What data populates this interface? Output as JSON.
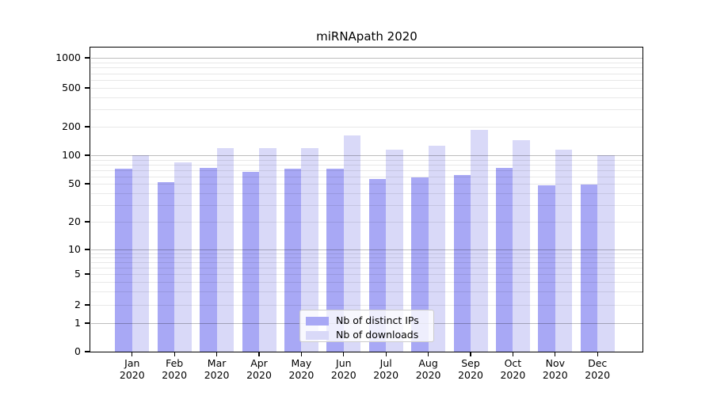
{
  "chart_data": {
    "type": "bar",
    "title": "miRNApath 2020",
    "months": [
      "Jan",
      "Feb",
      "Mar",
      "Apr",
      "May",
      "Jun",
      "Jul",
      "Aug",
      "Sep",
      "Oct",
      "Nov",
      "Dec"
    ],
    "year": "2020",
    "categories": [
      "Jan 2020",
      "Feb 2020",
      "Mar 2020",
      "Apr 2020",
      "May 2020",
      "Jun 2020",
      "Jul 2020",
      "Aug 2020",
      "Sep 2020",
      "Oct 2020",
      "Nov 2020",
      "Dec 2020"
    ],
    "series": [
      {
        "name": "Nb of distinct IPs",
        "color": "#a8a8f5",
        "values": [
          72,
          52,
          73,
          67,
          72,
          72,
          56,
          58,
          62,
          74,
          48,
          49
        ]
      },
      {
        "name": "Nb of downloads",
        "color": "#d9d9f8",
        "values": [
          101,
          84,
          118,
          118,
          118,
          162,
          114,
          126,
          186,
          145,
          114,
          100
        ]
      }
    ],
    "yscale": "symlog",
    "yticks": [
      0,
      1,
      2,
      5,
      10,
      20,
      50,
      100,
      200,
      500,
      1000
    ],
    "ytick_labels": [
      "0",
      "1",
      "2",
      "5",
      "10",
      "20",
      "50",
      "100",
      "200",
      "500",
      "1000"
    ],
    "ylim": [
      0,
      1400
    ],
    "grid": true,
    "legend_position": "lower center"
  },
  "colors": {
    "distinct_ips": "#a8a8f5",
    "downloads": "#d9d9f8",
    "grid_major": "rgba(0,0,0,0.26)",
    "grid_minor": "rgba(0,0,0,0.09)",
    "axis": "#000000",
    "legend_border": "#cccccc"
  }
}
